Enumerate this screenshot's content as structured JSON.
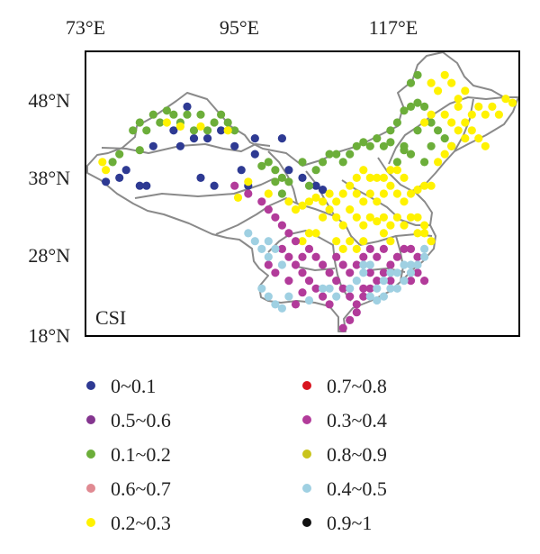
{
  "panel_label": "CSI",
  "axes": {
    "x_ticks": [
      {
        "value": 73,
        "label": "73°E"
      },
      {
        "value": 95,
        "label": "95°E"
      },
      {
        "value": 117,
        "label": "117°E"
      }
    ],
    "y_ticks": [
      {
        "value": 48,
        "label": "48°N"
      },
      {
        "value": 38,
        "label": "38°N"
      },
      {
        "value": 28,
        "label": "28°N"
      },
      {
        "value": 18,
        "label": "18°N"
      }
    ],
    "lon_range": [
      71,
      135
    ],
    "lat_range": [
      18,
      54
    ]
  },
  "colors": {
    "frame": "#000000",
    "boundary": "#8a8a8a"
  },
  "legend": [
    {
      "label": "0~0.1",
      "color": "#2e3a93"
    },
    {
      "label": "0.7~0.8",
      "color": "#d8141e"
    },
    {
      "label": "0.5~0.6",
      "color": "#84358f"
    },
    {
      "label": "0.3~0.4",
      "color": "#b23b9a"
    },
    {
      "label": "0.1~0.2",
      "color": "#6cae3a"
    },
    {
      "label": "0.8~0.9",
      "color": "#c9c41c"
    },
    {
      "label": "0.6~0.7",
      "color": "#e08a92"
    },
    {
      "label": "0.4~0.5",
      "color": "#9fd0e2"
    },
    {
      "label": "0.2~0.3",
      "color": "#fff200"
    },
    {
      "label": "0.9~1",
      "color": "#111111"
    }
  ],
  "stations": {
    "0~0.1": [
      [
        74,
        37.5
      ],
      [
        76,
        38
      ],
      [
        77,
        39
      ],
      [
        79,
        37
      ],
      [
        80,
        37
      ],
      [
        81,
        42
      ],
      [
        84,
        44
      ],
      [
        85,
        42
      ],
      [
        86,
        47
      ],
      [
        87,
        43
      ],
      [
        88,
        38
      ],
      [
        89,
        43
      ],
      [
        90,
        37
      ],
      [
        91,
        44
      ],
      [
        93,
        42
      ],
      [
        94,
        39
      ],
      [
        95,
        37
      ],
      [
        96,
        41
      ],
      [
        96,
        43
      ],
      [
        100,
        43
      ],
      [
        101,
        39
      ],
      [
        103,
        38
      ],
      [
        105,
        37
      ],
      [
        106,
        36.5
      ]
    ],
    "0.1~0.2": [
      [
        75,
        40
      ],
      [
        76,
        41
      ],
      [
        79,
        41.5
      ],
      [
        80,
        44
      ],
      [
        81,
        46
      ],
      [
        82,
        45
      ],
      [
        83,
        46.5
      ],
      [
        84,
        46
      ],
      [
        85,
        45
      ],
      [
        86,
        46
      ],
      [
        87,
        44
      ],
      [
        88,
        46
      ],
      [
        89,
        44
      ],
      [
        90,
        45
      ],
      [
        91,
        46
      ],
      [
        92,
        45
      ],
      [
        93,
        44
      ],
      [
        79,
        45
      ],
      [
        78,
        44
      ],
      [
        97,
        39.5
      ],
      [
        98,
        40
      ],
      [
        99,
        39
      ],
      [
        99,
        37.5
      ],
      [
        100,
        38
      ],
      [
        100,
        36
      ],
      [
        101,
        37.5
      ],
      [
        103,
        40
      ],
      [
        104,
        37
      ],
      [
        105,
        39
      ],
      [
        106,
        40
      ],
      [
        107,
        41
      ],
      [
        108,
        41
      ],
      [
        109,
        40
      ],
      [
        110,
        41
      ],
      [
        111,
        42
      ],
      [
        112,
        42.5
      ],
      [
        113,
        42
      ],
      [
        114,
        43
      ],
      [
        115,
        42
      ],
      [
        116,
        42.5
      ],
      [
        116,
        44
      ],
      [
        117,
        45
      ],
      [
        118,
        46.5
      ],
      [
        119,
        47
      ],
      [
        120,
        47.5
      ],
      [
        121,
        47
      ],
      [
        119,
        50
      ],
      [
        120,
        51
      ],
      [
        122,
        45
      ],
      [
        123,
        44
      ],
      [
        124,
        43
      ],
      [
        125,
        42
      ],
      [
        121,
        40
      ],
      [
        119,
        41
      ],
      [
        118,
        41.5
      ],
      [
        120,
        44
      ],
      [
        122,
        42
      ],
      [
        117,
        40
      ],
      [
        118,
        42
      ]
    ],
    "0.2~0.3": [
      [
        73.5,
        40
      ],
      [
        74,
        39
      ],
      [
        83,
        45
      ],
      [
        85,
        44.5
      ],
      [
        88,
        44.5
      ],
      [
        92,
        44
      ],
      [
        93.5,
        35.5
      ],
      [
        95,
        37.5
      ],
      [
        98,
        36
      ],
      [
        101,
        35
      ],
      [
        102,
        34
      ],
      [
        103,
        34.5
      ],
      [
        104,
        35
      ],
      [
        105,
        35.5
      ],
      [
        106,
        35
      ],
      [
        107,
        36
      ],
      [
        108,
        35
      ],
      [
        109,
        36
      ],
      [
        110,
        37
      ],
      [
        111,
        36
      ],
      [
        112,
        35
      ],
      [
        113,
        36
      ],
      [
        114,
        35
      ],
      [
        115,
        36
      ],
      [
        116,
        37
      ],
      [
        117,
        36
      ],
      [
        118,
        35
      ],
      [
        119,
        36
      ],
      [
        120,
        36.5
      ],
      [
        121,
        37
      ],
      [
        122,
        37
      ],
      [
        111,
        38
      ],
      [
        112,
        39
      ],
      [
        113,
        38
      ],
      [
        114,
        38
      ],
      [
        115,
        38
      ],
      [
        116,
        39
      ],
      [
        117,
        39
      ],
      [
        118,
        38
      ],
      [
        114,
        32.5
      ],
      [
        115,
        33
      ],
      [
        116,
        32
      ],
      [
        117,
        33
      ],
      [
        118,
        32
      ],
      [
        119,
        33
      ],
      [
        120,
        33
      ],
      [
        121,
        32
      ],
      [
        110,
        34
      ],
      [
        111,
        33
      ],
      [
        112,
        32
      ],
      [
        113,
        33
      ],
      [
        109,
        32
      ],
      [
        108,
        33
      ],
      [
        107,
        34
      ],
      [
        106,
        33
      ],
      [
        105,
        31
      ],
      [
        104,
        31
      ],
      [
        103,
        30
      ],
      [
        108,
        30
      ],
      [
        109,
        29
      ],
      [
        110,
        30
      ],
      [
        111,
        29
      ],
      [
        112,
        30
      ],
      [
        115,
        31
      ],
      [
        116,
        30
      ],
      [
        120,
        31
      ],
      [
        121,
        31
      ],
      [
        122,
        30
      ],
      [
        123,
        40
      ],
      [
        124,
        41
      ],
      [
        125,
        42
      ],
      [
        126,
        44
      ],
      [
        127,
        45
      ],
      [
        128,
        46
      ],
      [
        129,
        47
      ],
      [
        130,
        46
      ],
      [
        131,
        47
      ],
      [
        132,
        46
      ],
      [
        126,
        48
      ],
      [
        127,
        49
      ],
      [
        125,
        50
      ],
      [
        124,
        51
      ],
      [
        122,
        50
      ],
      [
        123,
        49
      ],
      [
        126,
        47
      ],
      [
        127,
        43
      ],
      [
        128,
        44
      ],
      [
        129,
        43
      ],
      [
        130,
        42
      ],
      [
        124,
        46
      ],
      [
        125,
        45
      ],
      [
        121,
        45
      ],
      [
        122,
        46
      ],
      [
        133,
        48
      ],
      [
        134,
        47.5
      ]
    ],
    "0.3~0.4": [
      [
        93,
        37
      ],
      [
        95,
        36
      ],
      [
        97,
        35
      ],
      [
        98,
        34
      ],
      [
        99,
        33
      ],
      [
        100,
        32
      ],
      [
        101,
        31
      ],
      [
        102,
        30
      ],
      [
        100,
        29
      ],
      [
        101,
        28
      ],
      [
        102,
        27
      ],
      [
        103,
        26
      ],
      [
        104,
        25
      ],
      [
        105,
        24
      ],
      [
        103,
        23.5
      ],
      [
        102,
        22
      ],
      [
        101,
        25
      ],
      [
        99,
        26
      ],
      [
        98,
        27
      ],
      [
        106,
        27
      ],
      [
        107,
        26
      ],
      [
        108,
        25
      ],
      [
        109,
        24
      ],
      [
        110,
        23
      ],
      [
        111,
        22
      ],
      [
        112,
        23
      ],
      [
        113,
        24
      ],
      [
        114,
        25
      ],
      [
        115,
        26
      ],
      [
        116,
        27
      ],
      [
        117,
        28
      ],
      [
        118,
        29
      ],
      [
        119,
        29
      ],
      [
        120,
        28
      ],
      [
        108,
        28
      ],
      [
        109,
        27
      ],
      [
        110,
        26
      ],
      [
        111,
        27
      ],
      [
        112,
        28
      ],
      [
        113,
        29
      ],
      [
        114,
        28
      ],
      [
        115,
        29
      ],
      [
        110,
        20
      ],
      [
        109,
        19
      ],
      [
        111,
        21
      ],
      [
        107,
        22
      ],
      [
        106,
        23
      ],
      [
        120,
        26
      ],
      [
        121,
        25
      ],
      [
        119,
        25
      ],
      [
        116,
        25
      ],
      [
        113,
        26
      ],
      [
        112,
        24
      ],
      [
        105,
        28
      ],
      [
        104,
        29
      ],
      [
        103,
        28
      ]
    ],
    "0.4~0.5": [
      [
        95,
        31
      ],
      [
        96,
        30
      ],
      [
        97,
        29
      ],
      [
        98,
        28
      ],
      [
        97,
        24
      ],
      [
        98,
        23
      ],
      [
        99,
        22
      ],
      [
        100,
        21.5
      ],
      [
        101,
        23
      ],
      [
        104,
        22.5
      ],
      [
        110,
        24
      ],
      [
        111,
        25
      ],
      [
        112,
        26
      ],
      [
        113,
        23
      ],
      [
        114,
        22.5
      ],
      [
        115,
        23
      ],
      [
        116,
        24
      ],
      [
        117,
        24
      ],
      [
        118,
        25
      ],
      [
        119,
        26
      ],
      [
        120,
        27
      ],
      [
        121,
        28
      ],
      [
        121,
        29
      ],
      [
        119,
        27
      ],
      [
        118,
        27
      ],
      [
        117,
        26
      ],
      [
        116,
        26
      ],
      [
        115,
        25
      ],
      [
        114,
        24
      ],
      [
        113,
        27
      ],
      [
        112,
        27
      ],
      [
        98,
        30
      ],
      [
        99,
        29
      ],
      [
        100,
        27
      ],
      [
        106,
        24
      ],
      [
        107,
        24
      ],
      [
        108,
        23
      ]
    ]
  }
}
